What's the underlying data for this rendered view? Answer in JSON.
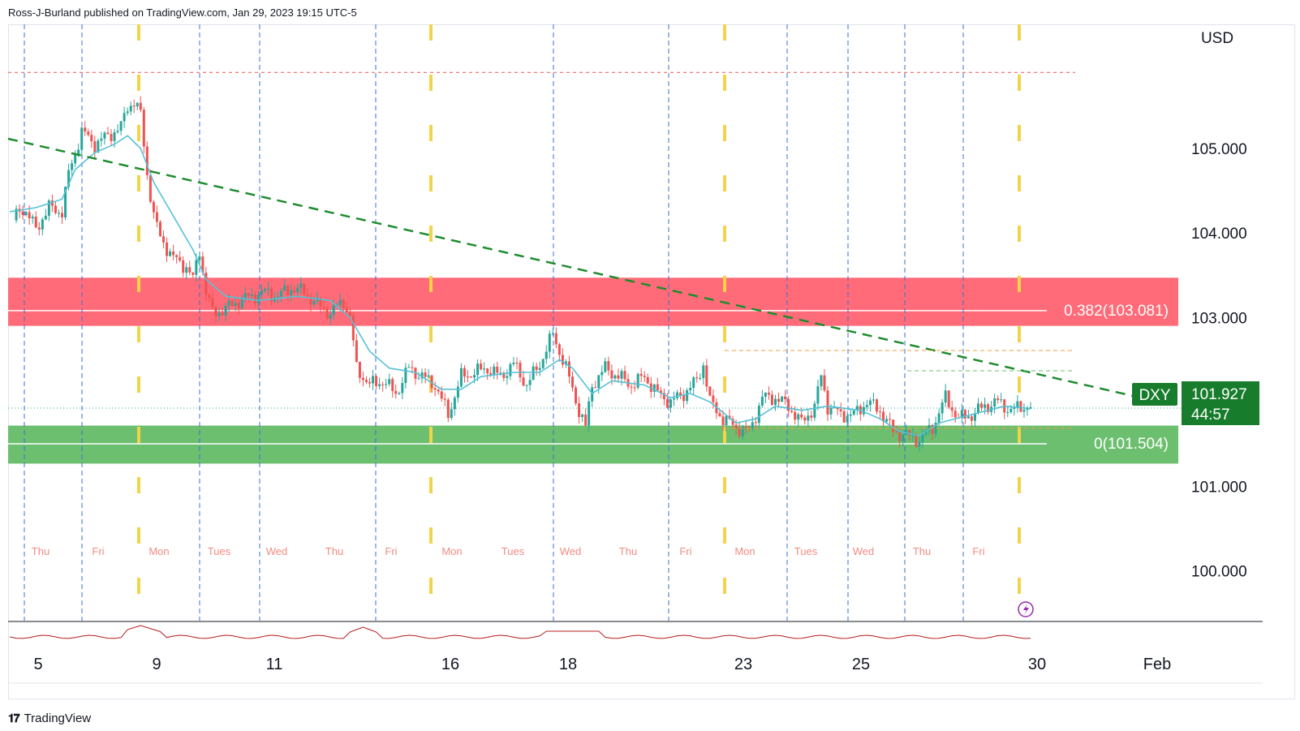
{
  "header": {
    "publish_text": "Ross-J-Burland published on TradingView.com, Jan 29, 2023 19:15 UTC-5"
  },
  "footer": {
    "logo_text": "TradingView"
  },
  "colors": {
    "up_candle": "#26a69a",
    "down_candle": "#ef5350",
    "ma_line": "#56c2d6",
    "trendline": "#1e8c2e",
    "resistance_zone": "#ff6b78",
    "support_zone": "#6cbf6f",
    "day_line": "#3a6fd8",
    "session_marker": "#f3d34a",
    "weekday_label": "#f28b82",
    "price_tag_bg": "#177c2b",
    "oscillator": "#b71c1c"
  },
  "chart_data": {
    "type": "candlestick",
    "symbol": "DXY",
    "currency_label": "USD",
    "y_range": [
      99.2,
      106.2
    ],
    "y_ticks": [
      {
        "value": 105.0,
        "label": "105.000"
      },
      {
        "value": 104.0,
        "label": "104.000"
      },
      {
        "value": 103.0,
        "label": "103.000"
      },
      {
        "value": 101.0,
        "label": "101.000"
      },
      {
        "value": 100.0,
        "label": "100.000"
      }
    ],
    "x_tick_labels": [
      "5",
      "9",
      "11",
      "16",
      "18",
      "23",
      "25",
      "30",
      "Feb"
    ],
    "weekday_labels": [
      "Thu",
      "Fri",
      "Mon",
      "Tues",
      "Wed",
      "Thu",
      "Fri",
      "Mon",
      "Tues",
      "Wed",
      "Thu",
      "Fri",
      "Mon",
      "Tues",
      "Wed",
      "Thu",
      "Fri"
    ],
    "current_price": "101.927",
    "countdown": "44:57",
    "fib_levels": [
      {
        "label": "0.382(103.081)",
        "value": 103.081
      },
      {
        "label": "0(101.504)",
        "value": 101.504
      }
    ],
    "resistance_zone": [
      102.9,
      103.47
    ],
    "support_zone": [
      101.27,
      101.72
    ],
    "top_dotted_level": 105.9,
    "price_path": [
      [
        0,
        104.15
      ],
      [
        2,
        104.3
      ],
      [
        4,
        104.05
      ],
      [
        6,
        104.3
      ],
      [
        8,
        104.25
      ],
      [
        9,
        104.7
      ],
      [
        11,
        105.2
      ],
      [
        13,
        105.05
      ],
      [
        15,
        105.15
      ],
      [
        17,
        105.25
      ],
      [
        18,
        105.5
      ],
      [
        19,
        105.55
      ],
      [
        20,
        105.4
      ],
      [
        21,
        104.7
      ],
      [
        22,
        104.2
      ],
      [
        23,
        103.95
      ],
      [
        25,
        103.7
      ],
      [
        27,
        103.6
      ],
      [
        28,
        103.45
      ],
      [
        29,
        103.8
      ],
      [
        30,
        103.3
      ],
      [
        31,
        103.05
      ],
      [
        33,
        103.1
      ],
      [
        35,
        103.2
      ],
      [
        37,
        103.25
      ],
      [
        39,
        103.3
      ],
      [
        41,
        103.25
      ],
      [
        43,
        103.35
      ],
      [
        45,
        103.3
      ],
      [
        47,
        103.15
      ],
      [
        49,
        103.05
      ],
      [
        51,
        103.2
      ],
      [
        52,
        103.0
      ],
      [
        53,
        102.4
      ],
      [
        55,
        102.2
      ],
      [
        57,
        102.25
      ],
      [
        59,
        102.1
      ],
      [
        61,
        102.4
      ],
      [
        63,
        102.3
      ],
      [
        65,
        102.2
      ],
      [
        67,
        101.85
      ],
      [
        69,
        102.3
      ],
      [
        71,
        102.35
      ],
      [
        73,
        102.4
      ],
      [
        75,
        102.3
      ],
      [
        77,
        102.45
      ],
      [
        79,
        102.2
      ],
      [
        81,
        102.45
      ],
      [
        83,
        102.8
      ],
      [
        85,
        102.4
      ],
      [
        87,
        101.9
      ],
      [
        88,
        101.7
      ],
      [
        89,
        102.2
      ],
      [
        91,
        102.4
      ],
      [
        93,
        102.3
      ],
      [
        95,
        102.2
      ],
      [
        97,
        102.3
      ],
      [
        99,
        102.1
      ],
      [
        101,
        102.0
      ],
      [
        103,
        102.1
      ],
      [
        105,
        102.25
      ],
      [
        106,
        102.45
      ],
      [
        107,
        102.0
      ],
      [
        109,
        101.8
      ],
      [
        111,
        101.7
      ],
      [
        113,
        101.65
      ],
      [
        115,
        102.05
      ],
      [
        117,
        102.05
      ],
      [
        119,
        101.95
      ],
      [
        121,
        101.75
      ],
      [
        123,
        101.95
      ],
      [
        124,
        102.3
      ],
      [
        125,
        101.95
      ],
      [
        127,
        101.85
      ],
      [
        129,
        101.85
      ],
      [
        131,
        102.0
      ],
      [
        133,
        101.9
      ],
      [
        135,
        101.65
      ],
      [
        137,
        101.6
      ],
      [
        139,
        101.55
      ],
      [
        141,
        101.7
      ],
      [
        143,
        102.05
      ],
      [
        145,
        101.8
      ],
      [
        147,
        101.85
      ],
      [
        149,
        101.95
      ],
      [
        151,
        102.0
      ],
      [
        153,
        101.9
      ],
      [
        155,
        101.95
      ],
      [
        156,
        101.93
      ]
    ],
    "moving_average": [
      [
        0,
        104.25
      ],
      [
        4,
        104.3
      ],
      [
        8,
        104.4
      ],
      [
        10,
        104.75
      ],
      [
        13,
        104.95
      ],
      [
        16,
        105.05
      ],
      [
        18,
        105.15
      ],
      [
        20,
        105.0
      ],
      [
        22,
        104.6
      ],
      [
        25,
        104.2
      ],
      [
        28,
        103.8
      ],
      [
        30,
        103.45
      ],
      [
        33,
        103.25
      ],
      [
        38,
        103.2
      ],
      [
        44,
        103.25
      ],
      [
        49,
        103.2
      ],
      [
        52,
        103.0
      ],
      [
        55,
        102.6
      ],
      [
        58,
        102.4
      ],
      [
        62,
        102.35
      ],
      [
        66,
        102.15
      ],
      [
        69,
        102.15
      ],
      [
        72,
        102.3
      ],
      [
        77,
        102.35
      ],
      [
        81,
        102.35
      ],
      [
        84,
        102.5
      ],
      [
        86,
        102.4
      ],
      [
        89,
        102.1
      ],
      [
        92,
        102.25
      ],
      [
        97,
        102.2
      ],
      [
        101,
        102.05
      ],
      [
        104,
        102.1
      ],
      [
        107,
        102.0
      ],
      [
        111,
        101.75
      ],
      [
        114,
        101.8
      ],
      [
        117,
        101.95
      ],
      [
        121,
        101.9
      ],
      [
        125,
        101.95
      ],
      [
        130,
        101.9
      ],
      [
        133,
        101.8
      ],
      [
        136,
        101.65
      ],
      [
        139,
        101.6
      ],
      [
        142,
        101.75
      ],
      [
        147,
        101.85
      ],
      [
        152,
        101.95
      ],
      [
        156,
        101.92
      ]
    ]
  }
}
